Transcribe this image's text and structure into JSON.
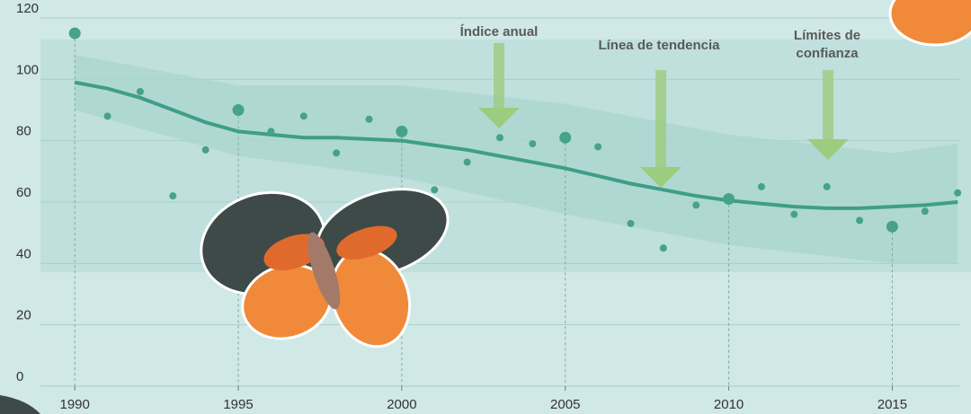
{
  "chart_data": {
    "type": "scatter",
    "annotations": [
      "Índice anual",
      "Línea de tendencia",
      "Límites de confianza"
    ],
    "x": [
      1990,
      1991,
      1992,
      1993,
      1994,
      1995,
      1996,
      1997,
      1998,
      1999,
      2000,
      2001,
      2002,
      2003,
      2004,
      2005,
      2006,
      2007,
      2008,
      2009,
      2010,
      2011,
      2012,
      2013,
      2014,
      2015,
      2016,
      2017
    ],
    "values": [
      115,
      88,
      96,
      62,
      77,
      90,
      83,
      88,
      76,
      87,
      83,
      64,
      73,
      81,
      79,
      81,
      78,
      53,
      45,
      59,
      61,
      65,
      56,
      65,
      54,
      52,
      57,
      63
    ],
    "color": "#46a288",
    "trend": {
      "values": [
        99,
        97,
        94,
        90,
        86,
        83,
        82,
        81,
        81,
        80.5,
        80,
        78.5,
        77,
        75,
        73,
        71,
        68.5,
        66,
        64,
        62,
        60.5,
        59.5,
        58.5,
        58,
        58,
        58.5,
        59,
        60
      ],
      "color": "#3f9e86"
    },
    "band": {
      "x": [
        1990,
        1995,
        2000,
        2005,
        2010,
        2015,
        2017
      ],
      "upper": [
        108,
        98,
        98,
        92,
        82,
        76,
        79
      ],
      "lower": [
        90,
        75,
        68,
        56,
        46,
        40,
        40
      ],
      "color": "#a9d4cf"
    },
    "xlim": [
      1988.95,
      2017.05
    ],
    "xticks": [
      1990,
      1995,
      2000,
      2005,
      2010,
      2015
    ],
    "ylim": [
      0,
      120
    ],
    "yticks": [
      0,
      20,
      40,
      60,
      80,
      100,
      120
    ],
    "grid": true
  }
}
